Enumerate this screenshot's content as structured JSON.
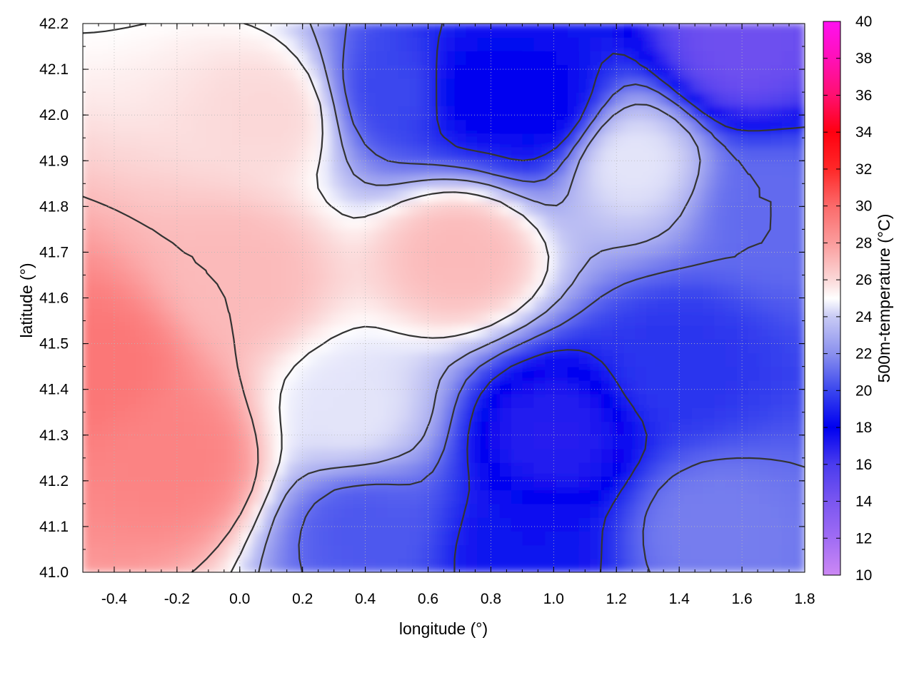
{
  "chart_data": {
    "type": "heatmap",
    "title": "",
    "xlabel": "longitude (°)",
    "ylabel": "latitude (°)",
    "colorbar_label": "500m-temperature (°C)",
    "xlim": [
      -0.5,
      1.8
    ],
    "ylim": [
      41.0,
      42.2
    ],
    "clim": [
      10,
      40
    ],
    "x_ticks": [
      "-0.4",
      "-0.2",
      "0.0",
      "0.2",
      "0.4",
      "0.6",
      "0.8",
      "1.0",
      "1.2",
      "1.4",
      "1.6",
      "1.8"
    ],
    "y_ticks": [
      "41.0",
      "41.1",
      "41.2",
      "41.3",
      "41.4",
      "41.5",
      "41.6",
      "41.7",
      "41.8",
      "41.9",
      "42.0",
      "42.1",
      "42.2"
    ],
    "colorbar_ticks": [
      "10",
      "12",
      "14",
      "16",
      "18",
      "20",
      "22",
      "24",
      "26",
      "28",
      "30",
      "32",
      "34",
      "36",
      "38",
      "40"
    ],
    "colormap": [
      {
        "value": 10,
        "color": "#cc88f4"
      },
      {
        "value": 12,
        "color": "#a06cf4"
      },
      {
        "value": 14,
        "color": "#7a56f0"
      },
      {
        "value": 16,
        "color": "#4a3cee"
      },
      {
        "value": 18,
        "color": "#0000f0"
      },
      {
        "value": 20,
        "color": "#3a46ee"
      },
      {
        "value": 22,
        "color": "#8a90ee"
      },
      {
        "value": 24,
        "color": "#c8caf4"
      },
      {
        "value": 25,
        "color": "#ffffff"
      },
      {
        "value": 26,
        "color": "#fbd8d8"
      },
      {
        "value": 28,
        "color": "#fb9c9c"
      },
      {
        "value": 30,
        "color": "#fb6a6a"
      },
      {
        "value": 32,
        "color": "#ff2828"
      },
      {
        "value": 34,
        "color": "#ff0010"
      },
      {
        "value": 36,
        "color": "#ff1070"
      },
      {
        "value": 38,
        "color": "#ff10b8"
      },
      {
        "value": 40,
        "color": "#ff10f0"
      }
    ],
    "contour_levels": [
      19,
      21,
      23,
      25,
      27
    ],
    "grid": true,
    "field_summary": [
      {
        "lon": -0.45,
        "lat": 41.45,
        "temp": 29.5
      },
      {
        "lon": -0.2,
        "lat": 41.25,
        "temp": 29.0
      },
      {
        "lon": 0.0,
        "lat": 41.65,
        "temp": 27.0
      },
      {
        "lon": 0.1,
        "lat": 42.0,
        "temp": 26.0
      },
      {
        "lon": 0.7,
        "lat": 41.7,
        "temp": 27.0
      },
      {
        "lon": 0.35,
        "lat": 41.35,
        "temp": 24.5
      },
      {
        "lon": 1.0,
        "lat": 41.3,
        "temp": 17.0
      },
      {
        "lon": 0.9,
        "lat": 41.05,
        "temp": 18.5
      },
      {
        "lon": 1.4,
        "lat": 41.45,
        "temp": 19.5
      },
      {
        "lon": 1.5,
        "lat": 41.1,
        "temp": 21.5
      },
      {
        "lon": 1.6,
        "lat": 42.15,
        "temp": 14.5
      },
      {
        "lon": 0.75,
        "lat": 42.05,
        "temp": 18.0
      },
      {
        "lon": 0.95,
        "lat": 42.02,
        "temp": 18.0
      },
      {
        "lon": 0.5,
        "lat": 42.05,
        "temp": 20.0
      },
      {
        "lon": 1.25,
        "lat": 41.9,
        "temp": 24.5
      },
      {
        "lon": 1.7,
        "lat": 41.8,
        "temp": 21.0
      },
      {
        "lon": 0.4,
        "lat": 41.1,
        "temp": 20.5
      }
    ]
  }
}
